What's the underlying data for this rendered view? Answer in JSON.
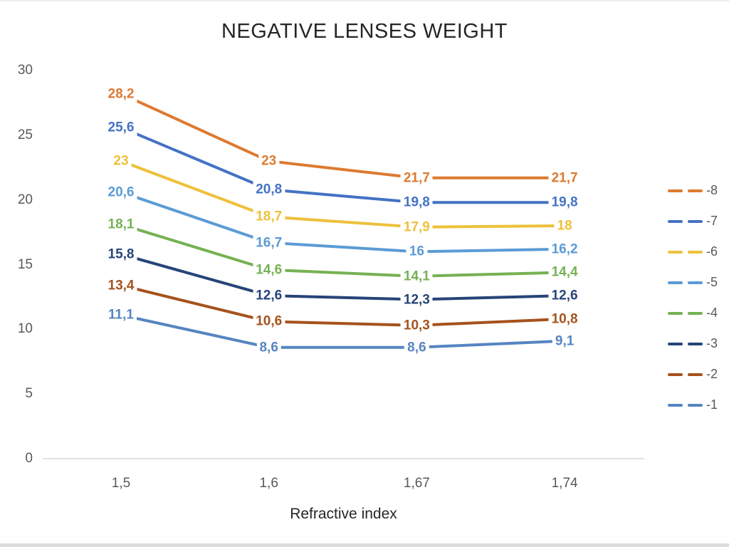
{
  "page": {
    "background_color": "#ffffff",
    "top_border_color": "#ededed",
    "bottom_bar_color": "#dcdcdc",
    "axis_line_color": "#d9d9d9",
    "tick_text_color": "#595959"
  },
  "chart_data": {
    "type": "line",
    "title": "NEGATIVE LENSES WEIGHT",
    "xlabel": "Refractive index",
    "ylabel": "",
    "categories": [
      "1,5",
      "1,6",
      "1,67",
      "1,74"
    ],
    "x_values": [
      1.5,
      1.6,
      1.67,
      1.74
    ],
    "ylim": [
      0,
      30
    ],
    "yticks": [
      0,
      5,
      10,
      15,
      20,
      25,
      30
    ],
    "grid": false,
    "legend_position": "right",
    "line_style_in_legend": "dashed",
    "series": [
      {
        "name": "-8",
        "color": "#DD7A30",
        "values": [
          28.2,
          23,
          21.7,
          21.7
        ],
        "labels": [
          "28,2",
          "23",
          "21,7",
          "21,7"
        ]
      },
      {
        "name": "-7",
        "color": "#4472C4",
        "values": [
          25.6,
          20.8,
          19.8,
          19.8
        ],
        "labels": [
          "25,6",
          "20,8",
          "19,8",
          "19,8"
        ]
      },
      {
        "name": "-6",
        "color": "#EDC13A",
        "values": [
          23,
          18.7,
          17.9,
          18
        ],
        "labels": [
          "23",
          "18,7",
          "17,9",
          "18"
        ]
      },
      {
        "name": "-5",
        "color": "#5B9BD5",
        "values": [
          20.6,
          16.7,
          16,
          16.2
        ],
        "labels": [
          "20,6",
          "16,7",
          "16",
          "16,2"
        ]
      },
      {
        "name": "-4",
        "color": "#76B153",
        "values": [
          18.1,
          14.6,
          14.1,
          14.4
        ],
        "labels": [
          "18,1",
          "14,6",
          "14,1",
          "14,4"
        ]
      },
      {
        "name": "-3",
        "color": "#264478",
        "values": [
          15.8,
          12.6,
          12.3,
          12.6
        ],
        "labels": [
          "15,8",
          "12,6",
          "12,3",
          "12,6"
        ]
      },
      {
        "name": "-2",
        "color": "#A5521D",
        "values": [
          13.4,
          10.6,
          10.3,
          10.8
        ],
        "labels": [
          "13,4",
          "10,6",
          "10,3",
          "10,8"
        ]
      },
      {
        "name": "-1",
        "color": "#5585C1",
        "values": [
          11.1,
          8.6,
          8.6,
          9.1
        ],
        "labels": [
          "11,1",
          "8,6",
          "8,6",
          "9,1"
        ]
      }
    ]
  }
}
